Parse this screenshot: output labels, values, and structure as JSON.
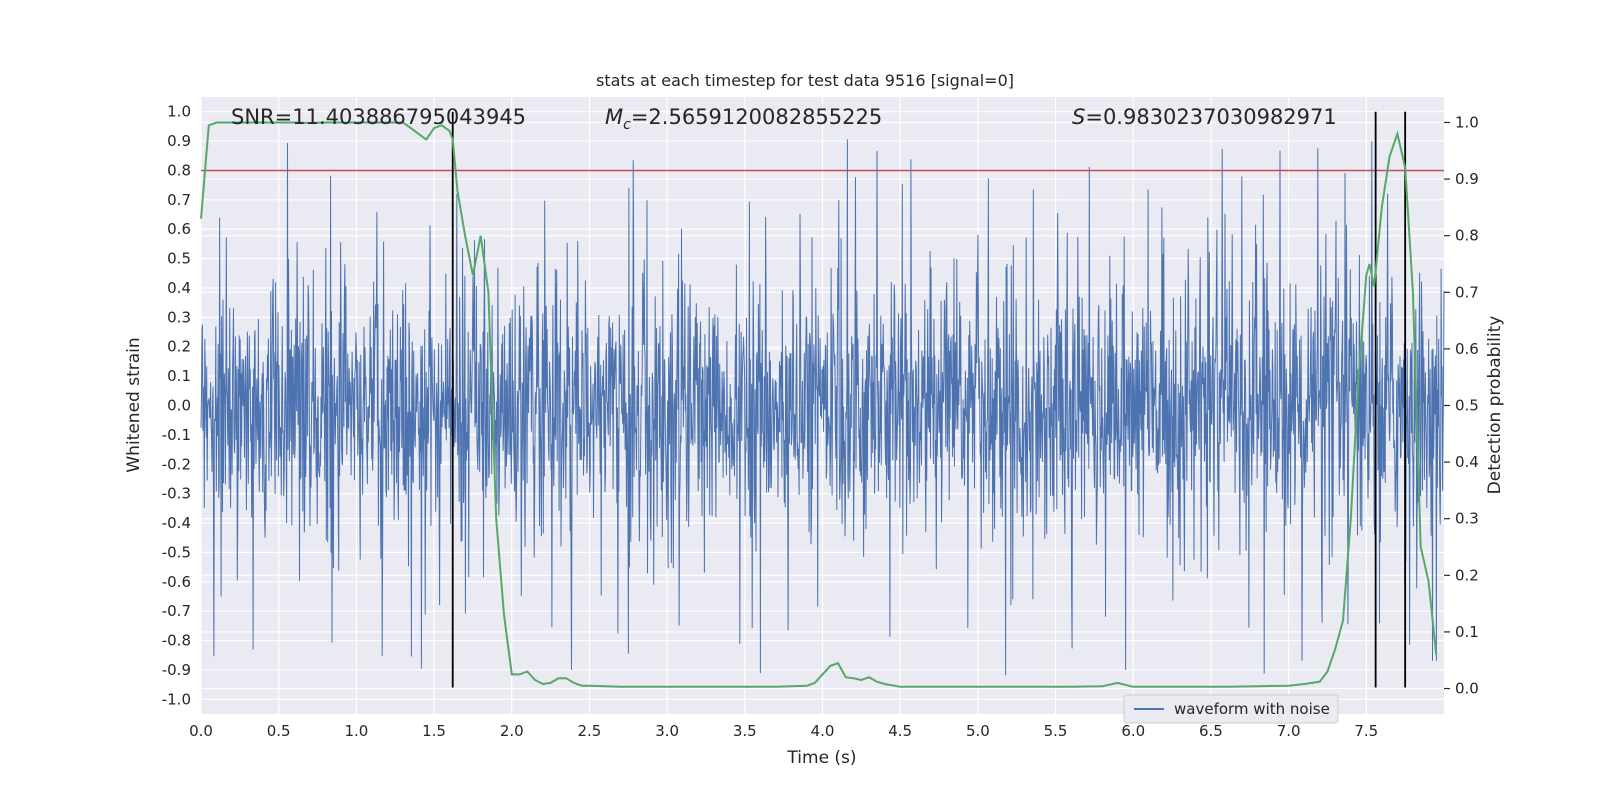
{
  "chart_data": {
    "type": "line",
    "title": "stats at each timestep for test data 9516 [signal=0]",
    "xlabel": "Time (s)",
    "ylabel_left": "Whitened strain",
    "ylabel_right": "Detection probability",
    "xlim": [
      0,
      8
    ],
    "ylim_left": [
      -1.05,
      1.05
    ],
    "ylim_right": [
      -0.045,
      1.045
    ],
    "x_ticks": [
      0.0,
      0.5,
      1.0,
      1.5,
      2.0,
      2.5,
      3.0,
      3.5,
      4.0,
      4.5,
      5.0,
      5.5,
      6.0,
      6.5,
      7.0,
      7.5
    ],
    "x_tick_labels": [
      "0.0",
      "0.5",
      "1.0",
      "1.5",
      "2.0",
      "2.5",
      "3.0",
      "3.5",
      "4.0",
      "4.5",
      "5.0",
      "5.5",
      "6.0",
      "6.5",
      "7.0",
      "7.5"
    ],
    "y_left_ticks": [
      -1.0,
      -0.9,
      -0.8,
      -0.7,
      -0.6,
      -0.5,
      -0.4,
      -0.3,
      -0.2,
      -0.1,
      0.0,
      0.1,
      0.2,
      0.3,
      0.4,
      0.5,
      0.6,
      0.7,
      0.8,
      0.9,
      1.0
    ],
    "y_left_tick_labels": [
      "-1.0",
      "-0.9",
      "-0.8",
      "-0.7",
      "-0.6",
      "-0.5",
      "-0.4",
      "-0.3",
      "-0.2",
      "-0.1",
      "0.0",
      "0.1",
      "0.2",
      "0.3",
      "0.4",
      "0.5",
      "0.6",
      "0.7",
      "0.8",
      "0.9",
      "1.0"
    ],
    "y_right_ticks": [
      0.0,
      0.1,
      0.2,
      0.3,
      0.4,
      0.5,
      0.6,
      0.7,
      0.8,
      0.9,
      1.0
    ],
    "y_right_tick_labels": [
      "0.0",
      "0.1",
      "0.2",
      "0.3",
      "0.4",
      "0.5",
      "0.6",
      "0.7",
      "0.8",
      "0.9",
      "1.0"
    ],
    "annotations": {
      "snr": "SNR=11.403886795043945",
      "mc_symbol": "M",
      "mc_subscript": "c",
      "mc_value": "=2.5659120082855225",
      "s_symbol": "S",
      "s_value": "=0.9830237030982971"
    },
    "threshold_line": {
      "value": 0.8,
      "axis": "left",
      "color": "#c44e52"
    },
    "vertical_lines": [
      1.62,
      7.56,
      7.75
    ],
    "waveform": {
      "name": "waveform with noise",
      "color": "#4c72b0",
      "description_values": "dense noise, envelope roughly +/-0.4 with spikes up to 1.0 and down to -0.96"
    },
    "probability": {
      "color": "#55a868",
      "x": [
        0.0,
        0.05,
        0.1,
        0.15,
        0.2,
        0.3,
        0.4,
        0.5,
        0.6,
        0.7,
        0.8,
        0.9,
        1.0,
        1.1,
        1.2,
        1.3,
        1.35,
        1.4,
        1.45,
        1.5,
        1.55,
        1.6,
        1.62,
        1.65,
        1.7,
        1.75,
        1.8,
        1.85,
        1.9,
        1.95,
        2.0,
        2.05,
        2.1,
        2.15,
        2.2,
        2.25,
        2.3,
        2.35,
        2.4,
        2.45,
        2.5,
        2.6,
        2.7,
        2.8,
        2.9,
        3.0,
        3.1,
        3.2,
        3.3,
        3.4,
        3.5,
        3.6,
        3.7,
        3.8,
        3.9,
        3.95,
        4.0,
        4.05,
        4.1,
        4.15,
        4.2,
        4.25,
        4.3,
        4.35,
        4.4,
        4.5,
        4.6,
        4.7,
        4.8,
        4.9,
        5.0,
        5.2,
        5.4,
        5.6,
        5.8,
        5.9,
        6.0,
        6.2,
        6.4,
        6.6,
        6.8,
        7.0,
        7.1,
        7.2,
        7.25,
        7.3,
        7.35,
        7.4,
        7.45,
        7.5,
        7.52,
        7.55,
        7.6,
        7.65,
        7.7,
        7.75,
        7.8,
        7.85,
        7.9,
        7.95
      ],
      "values": [
        0.83,
        0.995,
        1.0,
        1.0,
        1.0,
        1.0,
        1.0,
        1.0,
        1.0,
        0.999,
        1.0,
        1.0,
        1.0,
        1.0,
        1.0,
        1.0,
        0.99,
        0.98,
        0.97,
        0.99,
        0.995,
        0.985,
        0.97,
        0.88,
        0.8,
        0.73,
        0.8,
        0.7,
        0.3,
        0.13,
        0.025,
        0.025,
        0.03,
        0.015,
        0.008,
        0.01,
        0.018,
        0.018,
        0.01,
        0.005,
        0.005,
        0.004,
        0.003,
        0.003,
        0.003,
        0.003,
        0.003,
        0.003,
        0.003,
        0.003,
        0.003,
        0.003,
        0.003,
        0.004,
        0.005,
        0.01,
        0.025,
        0.04,
        0.045,
        0.02,
        0.018,
        0.015,
        0.02,
        0.012,
        0.008,
        0.003,
        0.003,
        0.003,
        0.003,
        0.003,
        0.003,
        0.003,
        0.003,
        0.003,
        0.004,
        0.01,
        0.003,
        0.003,
        0.003,
        0.003,
        0.004,
        0.005,
        0.008,
        0.012,
        0.03,
        0.07,
        0.12,
        0.3,
        0.55,
        0.73,
        0.75,
        0.71,
        0.85,
        0.94,
        0.98,
        0.92,
        0.7,
        0.25,
        0.19,
        0.06
      ]
    },
    "legend": {
      "label": "waveform with noise",
      "placement": "lower right"
    },
    "grid": true
  }
}
